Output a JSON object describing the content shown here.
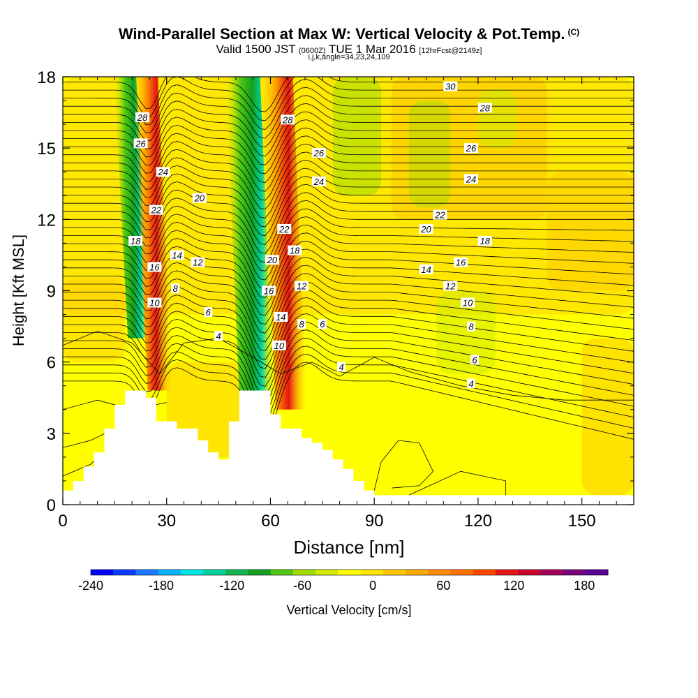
{
  "title": {
    "main": "Wind-Parallel Section at Max W: Vertical Velocity & Pot.Temp.",
    "main_tag": "(C)",
    "valid": "Valid 1500 JST",
    "valid_z": "(0600Z)",
    "date": "TUE 1 Mar 2016",
    "fcst": "[12hrFcst@2149z]",
    "indices": "i,j,k,angle=34,23,24,109"
  },
  "chart_data": {
    "type": "heatmap",
    "xlabel": "Distance [nm]",
    "ylabel": "Height [Kft MSL]",
    "xlim": [
      0,
      165
    ],
    "ylim": [
      0,
      18
    ],
    "x_ticks": [
      "0",
      "30",
      "60",
      "90",
      "120",
      "150"
    ],
    "y_ticks": [
      "0",
      "3",
      "6",
      "9",
      "12",
      "15",
      "18"
    ],
    "x_tick_values": [
      0,
      30,
      60,
      90,
      120,
      150
    ],
    "y_tick_values": [
      0,
      3,
      6,
      9,
      12,
      15,
      18
    ],
    "field": "Vertical Velocity [cm/s]",
    "colorbar": {
      "label": "Vertical Velocity [cm/s]",
      "range": [
        -240,
        200
      ],
      "tick_labels": [
        "-240",
        "-180",
        "-120",
        "-60",
        "0",
        "60",
        "120",
        "180"
      ],
      "tick_values": [
        -240,
        -180,
        -120,
        -60,
        0,
        60,
        120,
        180
      ],
      "colors": [
        "#0000ff",
        "#0a3cff",
        "#1e78ff",
        "#00b4ff",
        "#00e6e6",
        "#00d2a0",
        "#14b450",
        "#14a01e",
        "#50c814",
        "#a0dc00",
        "#d2eb00",
        "#ffff00",
        "#ffe600",
        "#ffc800",
        "#ffaa00",
        "#ff8c00",
        "#ff6e00",
        "#ff4600",
        "#e61414",
        "#c8002d",
        "#a0005a",
        "#78007d",
        "#5a0096"
      ]
    },
    "updrafts": [
      {
        "x": 28,
        "y_top": 18,
        "y_bottom": 4.8,
        "w_max": 120
      },
      {
        "x": 66,
        "y_top": 18,
        "y_bottom": 4.0,
        "w_max": 110
      }
    ],
    "downdrafts": [
      {
        "x": 22,
        "y_top": 18,
        "y_bottom": 7,
        "w_min": -90
      },
      {
        "x": 56,
        "y_top": 18,
        "y_bottom": 4.5,
        "w_min": -150
      }
    ],
    "terrain": [
      [
        0,
        0.6
      ],
      [
        3,
        0.6
      ],
      [
        3,
        1.0
      ],
      [
        6,
        1.0
      ],
      [
        6,
        1.6
      ],
      [
        9,
        1.6
      ],
      [
        9,
        2.2
      ],
      [
        12,
        2.2
      ],
      [
        12,
        3.2
      ],
      [
        15,
        3.2
      ],
      [
        15,
        4.2
      ],
      [
        18,
        4.2
      ],
      [
        18,
        4.8
      ],
      [
        24,
        4.8
      ],
      [
        24,
        4.5
      ],
      [
        27,
        4.5
      ],
      [
        27,
        3.5
      ],
      [
        33,
        3.5
      ],
      [
        33,
        3.2
      ],
      [
        39,
        3.2
      ],
      [
        39,
        2.7
      ],
      [
        42,
        2.7
      ],
      [
        42,
        2.2
      ],
      [
        45,
        2.2
      ],
      [
        45,
        1.9
      ],
      [
        48,
        1.9
      ],
      [
        48,
        3.5
      ],
      [
        51,
        3.5
      ],
      [
        51,
        4.8
      ],
      [
        60,
        4.8
      ],
      [
        60,
        3.8
      ],
      [
        63,
        3.8
      ],
      [
        63,
        3.2
      ],
      [
        69,
        3.2
      ],
      [
        69,
        2.8
      ],
      [
        72,
        2.8
      ],
      [
        72,
        2.6
      ],
      [
        75,
        2.6
      ],
      [
        75,
        2.3
      ],
      [
        78,
        2.3
      ],
      [
        78,
        1.9
      ],
      [
        81,
        1.9
      ],
      [
        81,
        1.5
      ],
      [
        84,
        1.5
      ],
      [
        84,
        1.0
      ],
      [
        87,
        1.0
      ],
      [
        87,
        0.6
      ],
      [
        90,
        0.6
      ],
      [
        90,
        0.4
      ],
      [
        165,
        0.4
      ]
    ],
    "contours": [
      {
        "level": "4",
        "label": "4"
      },
      {
        "level": "6",
        "label": "6"
      },
      {
        "level": "8",
        "label": "8"
      },
      {
        "level": "10",
        "label": "10"
      },
      {
        "level": "12",
        "label": "12"
      },
      {
        "level": "14",
        "label": "14"
      },
      {
        "level": "16",
        "label": "16"
      },
      {
        "level": "18",
        "label": "18"
      },
      {
        "level": "20",
        "label": "20"
      },
      {
        "level": "22",
        "label": "22"
      },
      {
        "level": "24",
        "label": "24"
      },
      {
        "level": "26",
        "label": "26"
      },
      {
        "level": "28",
        "label": "28"
      },
      {
        "level": "30",
        "label": "30"
      }
    ],
    "contour_labels": [
      {
        "text": "28",
        "x": 23,
        "y": 16.3
      },
      {
        "text": "26",
        "x": 22.5,
        "y": 15.2
      },
      {
        "text": "24",
        "x": 29,
        "y": 14.0
      },
      {
        "text": "22",
        "x": 27,
        "y": 12.4
      },
      {
        "text": "20",
        "x": 39.5,
        "y": 12.9
      },
      {
        "text": "18",
        "x": 21,
        "y": 11.1
      },
      {
        "text": "14",
        "x": 33,
        "y": 10.5
      },
      {
        "text": "16",
        "x": 26.5,
        "y": 10.0
      },
      {
        "text": "12",
        "x": 39,
        "y": 10.2
      },
      {
        "text": "8",
        "x": 32.5,
        "y": 9.1
      },
      {
        "text": "10",
        "x": 26.5,
        "y": 8.5
      },
      {
        "text": "6",
        "x": 42,
        "y": 8.1
      },
      {
        "text": "4",
        "x": 45,
        "y": 7.1
      },
      {
        "text": "28",
        "x": 65,
        "y": 16.2
      },
      {
        "text": "26",
        "x": 74,
        "y": 14.8
      },
      {
        "text": "24",
        "x": 74,
        "y": 13.6
      },
      {
        "text": "22",
        "x": 64,
        "y": 11.6
      },
      {
        "text": "20",
        "x": 60.5,
        "y": 10.3
      },
      {
        "text": "18",
        "x": 67,
        "y": 10.7
      },
      {
        "text": "16",
        "x": 59.5,
        "y": 9.0
      },
      {
        "text": "12",
        "x": 69,
        "y": 9.2
      },
      {
        "text": "14",
        "x": 63,
        "y": 7.9
      },
      {
        "text": "8",
        "x": 69,
        "y": 7.6
      },
      {
        "text": "6",
        "x": 75,
        "y": 7.6
      },
      {
        "text": "10",
        "x": 62.5,
        "y": 6.7
      },
      {
        "text": "4",
        "x": 80.5,
        "y": 5.8
      },
      {
        "text": "30",
        "x": 112,
        "y": 17.6
      },
      {
        "text": "28",
        "x": 122,
        "y": 16.7
      },
      {
        "text": "26",
        "x": 118,
        "y": 15.0
      },
      {
        "text": "24",
        "x": 118,
        "y": 13.7
      },
      {
        "text": "22",
        "x": 109,
        "y": 12.2
      },
      {
        "text": "20",
        "x": 105,
        "y": 11.6
      },
      {
        "text": "18",
        "x": 122,
        "y": 11.1
      },
      {
        "text": "16",
        "x": 115,
        "y": 10.2
      },
      {
        "text": "14",
        "x": 105,
        "y": 9.9
      },
      {
        "text": "12",
        "x": 112,
        "y": 9.2
      },
      {
        "text": "10",
        "x": 117,
        "y": 8.5
      },
      {
        "text": "8",
        "x": 118,
        "y": 7.5
      },
      {
        "text": "6",
        "x": 119,
        "y": 6.1
      },
      {
        "text": "4",
        "x": 118,
        "y": 5.1
      }
    ]
  }
}
